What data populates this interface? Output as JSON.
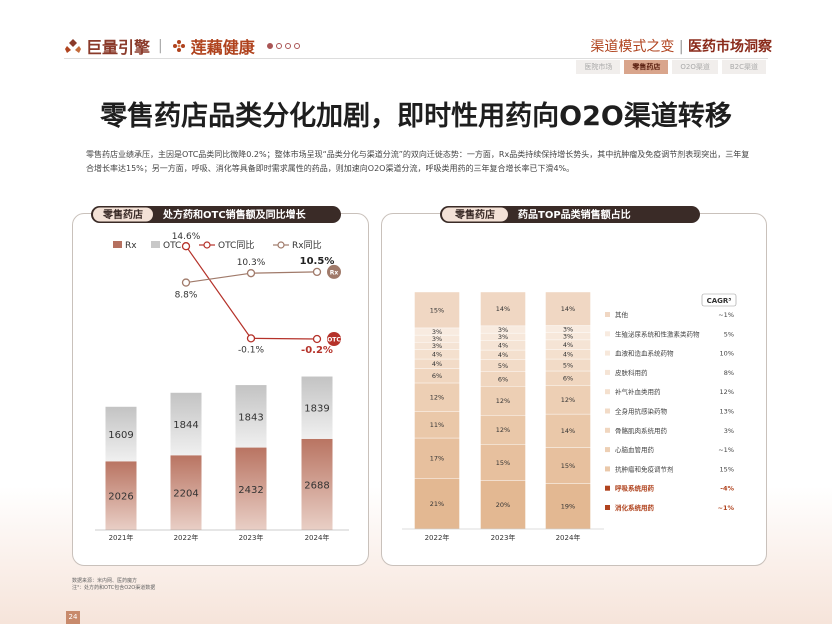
{
  "header": {
    "brand1": "巨量引擎",
    "brand2": "莲藕健康",
    "series_title": "渠道模式之变",
    "report_title": "医药市场洞察",
    "tabs": [
      "医院市场",
      "零售药店",
      "O2O渠道",
      "B2C渠道"
    ],
    "active_tab": 1
  },
  "headline": "零售药店品类分化加剧，即时性用药向O2O渠道转移",
  "paragraph": "零售药店业绩承压，主因是OTC品类同比微降0.2%；整体市场呈现“品类分化与渠道分流”的双向迁徙态势：一方面，Rx品类持续保持增长势头，其中抗肿瘤及免疫调节剂表现突出，三年复合增长率达15%；另一方面，呼吸、消化等具备即时需求属性的药品，则加速向O2O渠道分流，呼吸类用药的三年复合增长率已下滑4%。",
  "left_panel": {
    "tag": "零售药店",
    "title": "处方药和OTC销售额及同比增长"
  },
  "right_panel": {
    "tag": "零售药店",
    "title": "药品TOP品类销售额占比"
  },
  "colors": {
    "rx": "#b5705f",
    "otc": "#c8c8c8",
    "line": "#b5322a",
    "rx_line": "#a07a6a",
    "accent": "#b0431e"
  },
  "chart_data": [
    {
      "type": "bar",
      "stacked": true,
      "categories": [
        "2021年",
        "2022年",
        "2023年",
        "2024年"
      ],
      "series": [
        {
          "name": "Rx",
          "values": [
            2026,
            2204,
            2432,
            2688
          ]
        },
        {
          "name": "OTC",
          "values": [
            1609,
            1844,
            1843,
            1839
          ]
        }
      ],
      "lines": [
        {
          "name": "OTC同比",
          "labels": [
            "",
            "14.6%",
            "-0.1%",
            "-0.2%"
          ],
          "values": [
            null,
            14.6,
            -0.1,
            -0.2
          ],
          "end_tag": "OTC"
        },
        {
          "name": "Rx同比",
          "labels": [
            "",
            "8.8%",
            "10.3%",
            "10.5%"
          ],
          "values": [
            null,
            8.8,
            10.3,
            10.5
          ],
          "end_tag": "Rx"
        }
      ]
    },
    {
      "type": "bar",
      "stacked": true,
      "percent": true,
      "categories": [
        "2022年",
        "2023年",
        "2024年"
      ],
      "cagr_header": "CAGR³",
      "series": [
        {
          "name": "消化系统用药",
          "values": [
            21,
            20,
            19
          ],
          "cagr": "~1%",
          "highlight": true
        },
        {
          "name": "呼吸系统用药",
          "values": [
            17,
            15,
            15
          ],
          "cagr": "-4%",
          "highlight": true
        },
        {
          "name": "抗肿瘤和免疫调节剂",
          "values": [
            11,
            12,
            14
          ],
          "cagr": "15%",
          "highlight": false
        },
        {
          "name": "心脑血管用药",
          "values": [
            12,
            12,
            12
          ],
          "cagr": "~1%",
          "highlight": false
        },
        {
          "name": "骨骼肌肉系统用药",
          "values": [
            6,
            6,
            6
          ],
          "cagr": "3%",
          "highlight": false
        },
        {
          "name": "全身用抗感染药物",
          "values": [
            4,
            5,
            5
          ],
          "cagr": "13%",
          "highlight": false
        },
        {
          "name": "补气补血类用药",
          "values": [
            4,
            4,
            4
          ],
          "cagr": "12%",
          "highlight": false
        },
        {
          "name": "皮肤科用药",
          "values": [
            3,
            4,
            4
          ],
          "cagr": "8%",
          "highlight": false
        },
        {
          "name": "血液和造血系统药物",
          "values": [
            3,
            3,
            3
          ],
          "cagr": "10%",
          "highlight": false
        },
        {
          "name": "生殖泌尿系统和性激素类药物",
          "values": [
            3,
            3,
            3
          ],
          "cagr": "5%",
          "highlight": false
        },
        {
          "name": "其他",
          "values": [
            15,
            14,
            14
          ],
          "cagr": "~1%",
          "highlight": false
        }
      ],
      "fills": [
        "#e3b892",
        "#e7c09e",
        "#eac8a9",
        "#edcfb4",
        "#f0d6bf",
        "#f2dbc7",
        "#f4e0ce",
        "#f5e4d5",
        "#f7e8db",
        "#f8ebe0",
        "#f0d7c3"
      ]
    }
  ],
  "footnote": {
    "line1": "数据来源：米内网、医药魔方",
    "line2": "注³：处方药和OTC包含O2O渠道数据"
  },
  "page_number": "24"
}
